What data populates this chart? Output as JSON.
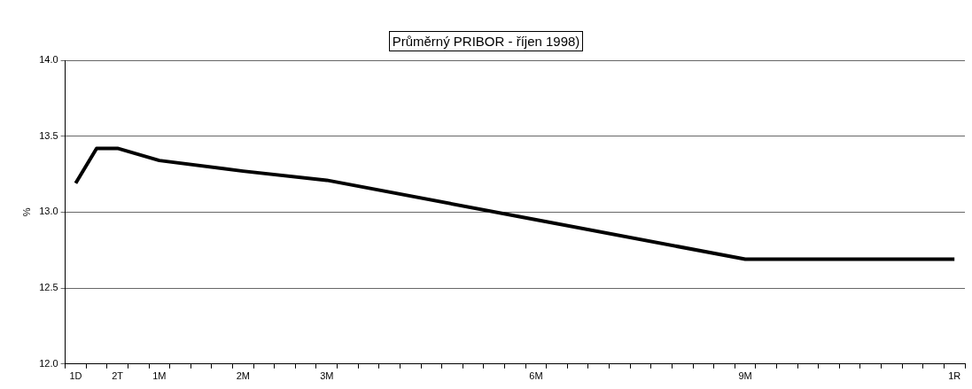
{
  "chart_data": {
    "type": "line",
    "title": "Průměrný PRIBOR - říjen 1998)",
    "ylabel": "%",
    "categories": [
      "1D",
      null,
      "2T",
      null,
      "1M",
      null,
      null,
      null,
      "2M",
      null,
      null,
      null,
      "3M",
      null,
      null,
      null,
      null,
      null,
      null,
      null,
      null,
      null,
      "6M",
      null,
      null,
      null,
      null,
      null,
      null,
      null,
      null,
      null,
      "9M",
      null,
      null,
      null,
      null,
      null,
      null,
      null,
      null,
      null,
      "1R"
    ],
    "series": [
      {
        "color": "#000000",
        "values": [
          13.19,
          13.42,
          13.42,
          null,
          13.34,
          null,
          null,
          null,
          13.27,
          null,
          null,
          null,
          13.21,
          null,
          null,
          null,
          null,
          null,
          null,
          null,
          null,
          null,
          12.95,
          null,
          null,
          null,
          null,
          null,
          null,
          null,
          null,
          null,
          12.69,
          null,
          null,
          null,
          null,
          null,
          null,
          null,
          null,
          null,
          12.69
        ]
      }
    ],
    "ylim": [
      12,
      14
    ],
    "yticks": [
      {
        "value": 12,
        "label": "12.0"
      },
      {
        "value": 12.5,
        "label": "12.5"
      },
      {
        "value": 13,
        "label": "13.0"
      },
      {
        "value": 13.5,
        "label": "13.5"
      },
      {
        "value": 14,
        "label": "14.0"
      }
    ],
    "grid": "y",
    "marker": "none",
    "line_style": "solid",
    "legend": false
  }
}
